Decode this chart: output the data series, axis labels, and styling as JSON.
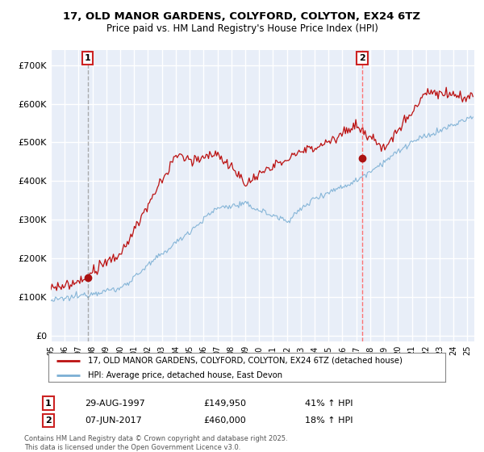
{
  "title_line1": "17, OLD MANOR GARDENS, COLYFORD, COLYTON, EX24 6TZ",
  "title_line2": "Price paid vs. HM Land Registry's House Price Index (HPI)",
  "yticks": [
    0,
    100000,
    200000,
    300000,
    400000,
    500000,
    600000,
    700000
  ],
  "ytick_labels": [
    "£0",
    "£100K",
    "£200K",
    "£300K",
    "£400K",
    "£500K",
    "£600K",
    "£700K"
  ],
  "xlim_start": 1995.0,
  "xlim_end": 2025.5,
  "ylim": [
    -15000,
    740000
  ],
  "sale1_date": 1997.66,
  "sale1_price": 149950,
  "sale2_date": 2017.43,
  "sale2_price": 460000,
  "legend_line1": "17, OLD MANOR GARDENS, COLYFORD, COLYTON, EX24 6TZ (detached house)",
  "legend_line2": "HPI: Average price, detached house, East Devon",
  "annotation1_date": "29-AUG-1997",
  "annotation1_price": "£149,950",
  "annotation1_hpi": "41% ↑ HPI",
  "annotation2_date": "07-JUN-2017",
  "annotation2_price": "£460,000",
  "annotation2_hpi": "18% ↑ HPI",
  "footer": "Contains HM Land Registry data © Crown copyright and database right 2025.\nThis data is licensed under the Open Government Licence v3.0.",
  "line_color_red": "#BB1111",
  "line_color_blue": "#7BAFD4",
  "background_color": "#E8EEF8",
  "grid_color": "#FFFFFF",
  "sale_marker_color": "#AA1111"
}
